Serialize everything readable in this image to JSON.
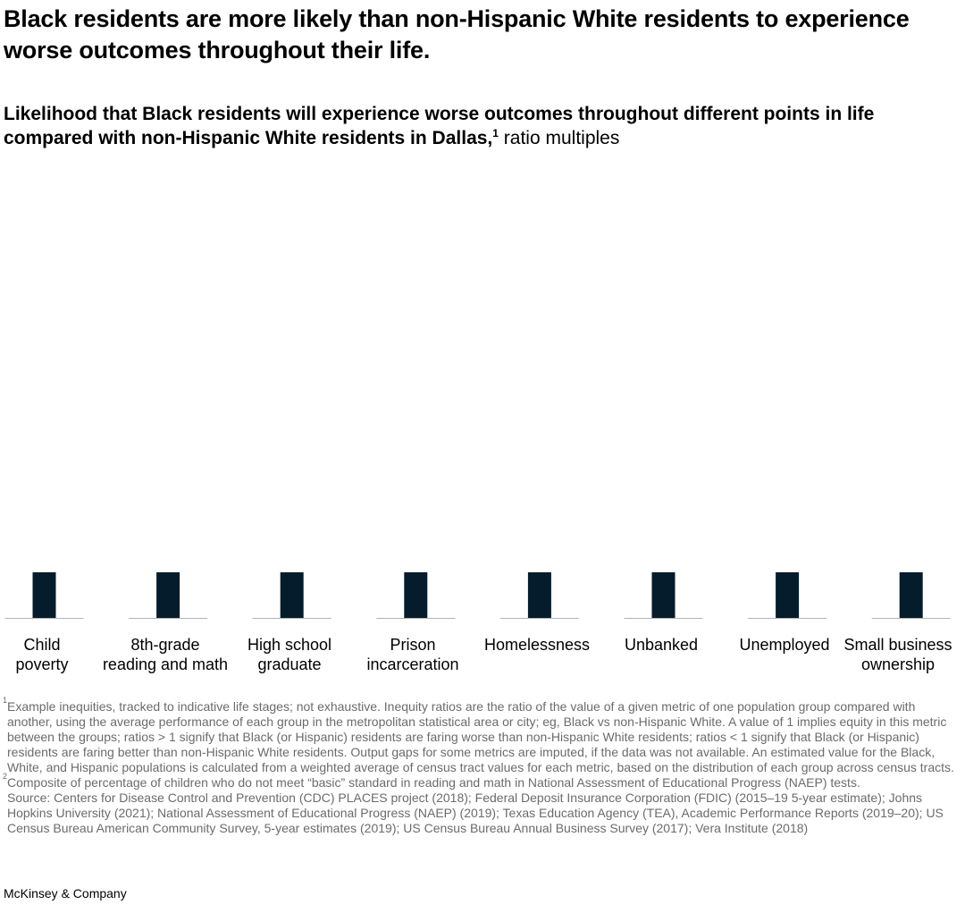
{
  "headline": "Black residents are more likely than non-Hispanic White residents to experience worse outcomes throughout their life.",
  "subtitle": {
    "text": "Likelihood that Black residents will experience worse outcomes throughout different points in life compared with non-Hispanic White residents in Dallas,",
    "footnote_mark": "1",
    "unit": "ratio multiples"
  },
  "chart_data": {
    "type": "bar",
    "categories": [
      "Child poverty",
      "8th-grade reading and math",
      "High school graduate",
      "Prison incarceration",
      "Homelessness",
      "Unbanked",
      "Unemployed",
      "Small business ownership"
    ],
    "values": [
      1,
      1,
      1,
      1,
      1,
      1,
      1,
      1
    ],
    "colors": {
      "bar": "#051c2c",
      "baseline": "#b3b3b3"
    },
    "grid": false,
    "legend": "none"
  },
  "category_labels": [
    [
      "Child",
      "poverty"
    ],
    [
      "8th-grade",
      "reading and math"
    ],
    [
      "High school",
      "graduate"
    ],
    [
      "Prison",
      "incarceration"
    ],
    [
      "Homelessness"
    ],
    [
      "Unbanked"
    ],
    [
      "Unemployed"
    ],
    [
      "Small business",
      "ownership"
    ]
  ],
  "footnotes": [
    {
      "mark": "1",
      "text": "Example inequities, tracked to indicative life stages; not exhaustive. Inequity ratios are the ratio of the value of a given metric of one population group compared with another, using the average performance of each group in the metropolitan statistical area or city; eg, Black vs non-Hispanic White. A value of 1 implies equity in this metric between the groups; ratios > 1 signify that Black (or Hispanic) residents are faring worse than non-Hispanic White residents; ratios < 1 signify that Black (or Hispanic) residents are faring better than non-Hispanic White residents. Output gaps for some metrics are imputed, if the data was not available. An estimated value for the Black, White, and Hispanic populations is calculated from a weighted average of census tract values for each metric, based on the distribution of each group across census tracts."
    },
    {
      "mark": "2",
      "text": "Composite of percentage of children who do not meet “basic” standard in reading and math in National Assessment of Educational Progress (NAEP) tests."
    }
  ],
  "source": "Source: Centers for Disease Control and Prevention (CDC) PLACES project (2018); Federal Deposit Insurance Corporation (FDIC) (2015–19 5-year estimate); Johns Hopkins University (2021); National Assessment of Educational Progress (NAEP) (2019); Texas Education Agency (TEA), Academic Performance Reports (2019–20); US Census Bureau American Community Survey, 5-year estimates (2019); US Census Bureau Annual Business Survey (2017); Vera Institute (2018)",
  "brand": "McKinsey & Company"
}
